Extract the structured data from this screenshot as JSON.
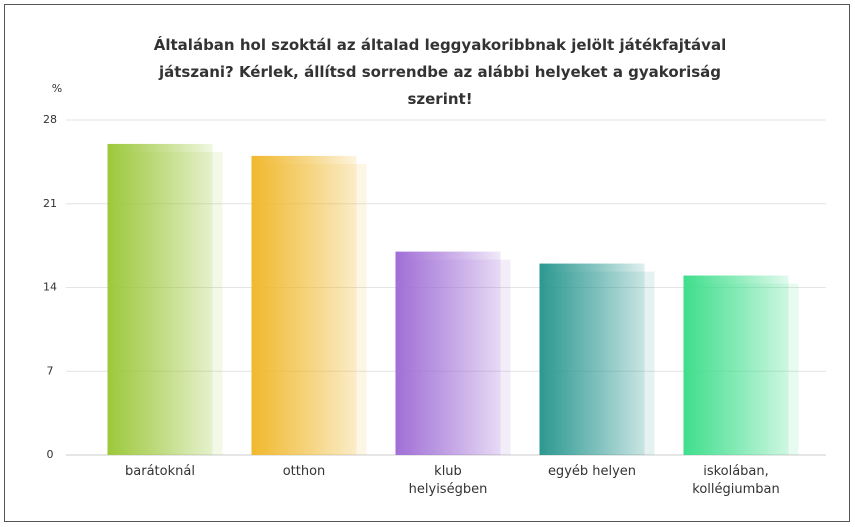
{
  "chart_data": {
    "type": "bar",
    "title": "Általában hol szoktál az általad leggyakoribbnak jelölt játékfajtával játszani? Kérlek, állítsd sorrendbe az alábbi helyeket a gyakoriság szerint!",
    "y_label": "%",
    "categories": [
      "barátoknál",
      "otthon",
      "klub helyiségben",
      "egyéb helyen",
      "iskolában, kollégiumban"
    ],
    "values": [
      26,
      25,
      17,
      16,
      15
    ],
    "colors": [
      "#9cc83a",
      "#f0b82c",
      "#a06ed6",
      "#2a9890",
      "#3ede8c"
    ],
    "ylim": [
      0,
      28
    ],
    "yticks": [
      0,
      7,
      14,
      21,
      28
    ],
    "grid": true
  }
}
